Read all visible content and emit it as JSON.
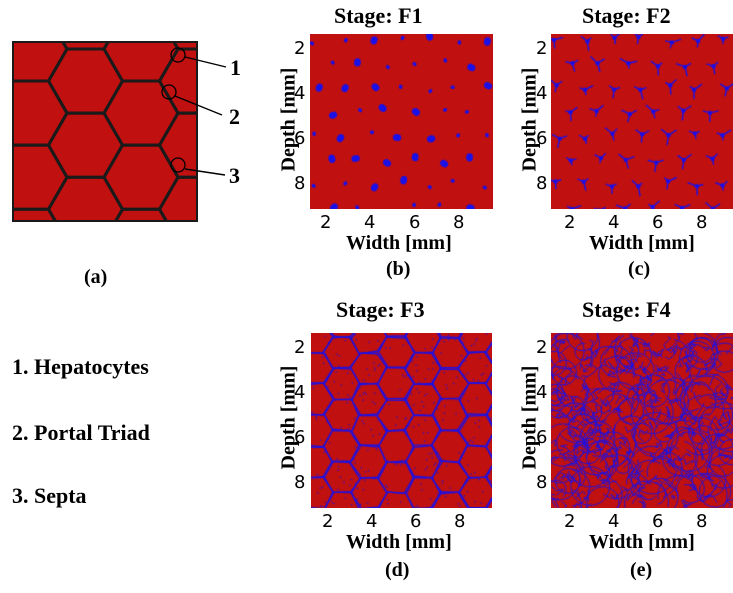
{
  "panel_a": {
    "caption": "(a)",
    "callouts": [
      "1",
      "2",
      "3"
    ]
  },
  "legend": {
    "items": [
      "1. Hepatocytes",
      "2. Portal Triad",
      "3. Septa"
    ]
  },
  "colors": {
    "tissue": "#c01010",
    "marker": "#1a10e8",
    "outline": "#1a1a1a"
  },
  "panels": [
    {
      "title": "Stage: F1",
      "caption": "(b)",
      "pattern": "portal-triad-dots"
    },
    {
      "title": "Stage: F2",
      "caption": "(c)",
      "pattern": "portal-triad-stars"
    },
    {
      "title": "Stage: F3",
      "caption": "(d)",
      "pattern": "septa-honeycomb"
    },
    {
      "title": "Stage: F4",
      "caption": "(e)",
      "pattern": "dense-network"
    }
  ],
  "axes": {
    "xlabel": "Width [mm]",
    "ylabel": "Depth [mm]",
    "xticks": [
      "2",
      "4",
      "6",
      "8"
    ],
    "yticks": [
      "2",
      "4",
      "6",
      "8"
    ]
  }
}
